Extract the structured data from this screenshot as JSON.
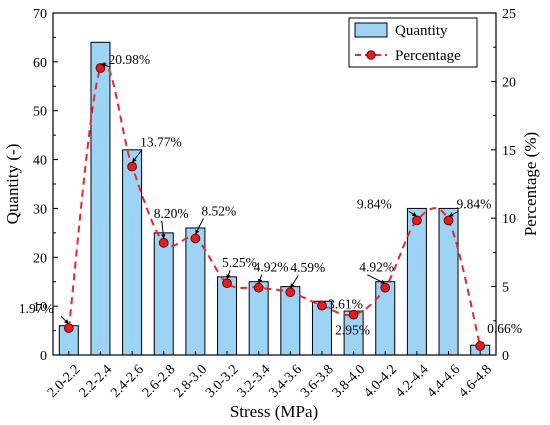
{
  "chart_data": {
    "type": "bar",
    "categories": [
      "2.0-2.2",
      "2.2-2.4",
      "2.4-2.6",
      "2.6-2.8",
      "2.8-3.0",
      "3.0-3.2",
      "3.2-3.4",
      "3.4-3.6",
      "3.6-3.8",
      "3.8-4.0",
      "4.0-4.2",
      "4.2-4.4",
      "4.4-4.6",
      "4.6-4.8"
    ],
    "series": [
      {
        "name": "Quantity",
        "type": "bar",
        "axis": "left",
        "values": [
          6,
          64,
          42,
          25,
          26,
          16,
          15,
          14,
          11,
          9,
          15,
          30,
          30,
          2
        ],
        "color": "#9dd3f5"
      },
      {
        "name": "Percentage",
        "type": "line",
        "axis": "right",
        "values": [
          1.97,
          20.98,
          13.77,
          8.2,
          8.52,
          5.25,
          4.92,
          4.59,
          3.61,
          2.95,
          4.92,
          9.84,
          9.84,
          0.66
        ],
        "labels": [
          "1.97%",
          "20.98%",
          "13.77%",
          "8.20%",
          "8.52%",
          "5.25%",
          "4.92%",
          "4.59%",
          "3.61%",
          "2.95%",
          "4.92%",
          "9.84%",
          "9.84%",
          "0.66%"
        ],
        "color": "#e8262d",
        "marker_color": "#dd1f1f"
      }
    ],
    "xlabel": "Stress (MPa)",
    "ylabel": "Quantity (-)",
    "y2label": "Percentage (%)",
    "ylim": [
      0,
      70
    ],
    "y2lim": [
      0,
      25
    ],
    "yticks": [
      0,
      10,
      20,
      30,
      40,
      50,
      60,
      70
    ],
    "y2ticks": [
      0,
      5,
      10,
      15,
      20,
      25
    ],
    "grid": false,
    "legend_position": "top-right"
  }
}
